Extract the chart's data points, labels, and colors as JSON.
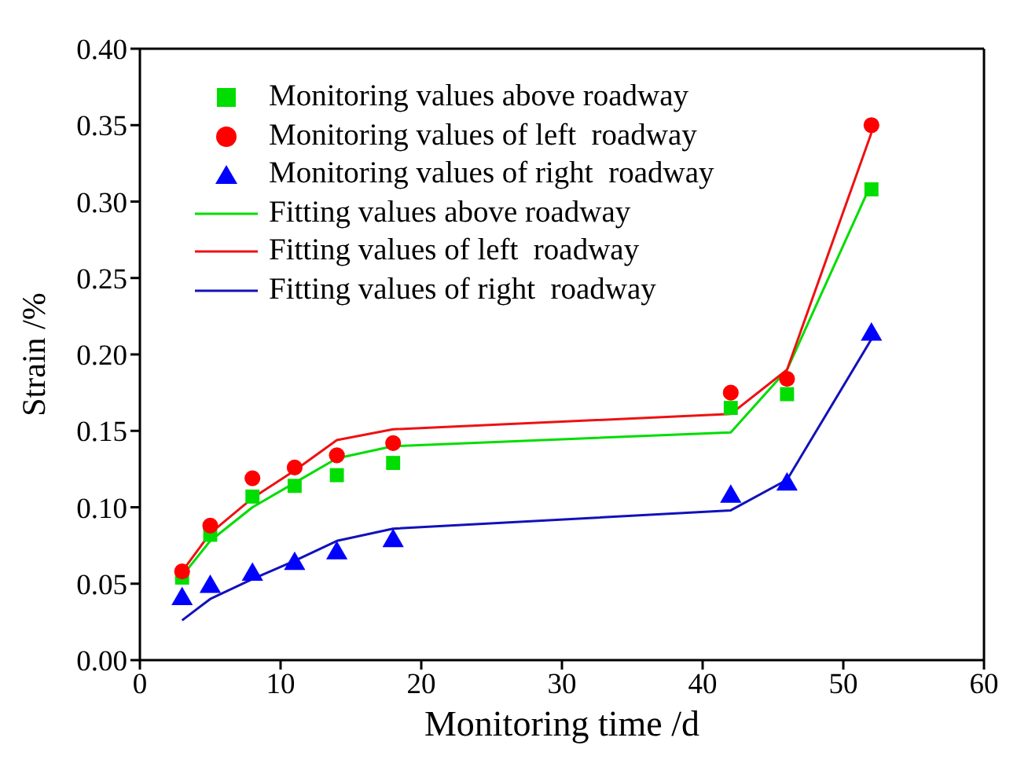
{
  "chart_data": {
    "type": "scatter",
    "xlabel": "Monitoring time /d",
    "ylabel": "Strain /%",
    "xlim": [
      0,
      60
    ],
    "xticks": [
      0,
      10,
      20,
      30,
      40,
      50,
      60
    ],
    "ylim": [
      0,
      0.4
    ],
    "yticks": [
      {
        "value": 0,
        "label": "0.00"
      },
      0.05,
      {
        "value": 0.1,
        "label": "0.10"
      },
      0.15,
      {
        "value": 0.2,
        "label": "0.20"
      },
      0.25,
      {
        "value": 0.3,
        "label": "0.30"
      },
      0.35,
      {
        "value": 0.4,
        "label": "0.40"
      }
    ],
    "legend": "top left",
    "x": [
      3,
      5,
      8,
      11,
      14,
      18,
      42,
      46,
      52
    ],
    "series": [
      {
        "name": "Monitoring values above roadway",
        "marker": "square",
        "color": "#00dd00",
        "values": [
          0.054,
          0.082,
          0.107,
          0.114,
          0.121,
          0.129,
          0.165,
          0.174,
          0.308
        ]
      },
      {
        "name": "Monitoring values of left  roadway",
        "marker": "circle",
        "color": "#ff0000",
        "values": [
          0.058,
          0.088,
          0.119,
          0.126,
          0.134,
          0.142,
          0.175,
          0.184,
          0.35
        ]
      },
      {
        "name": "Monitoring values of right  roadway",
        "marker": "triangle",
        "color": "#0000ff",
        "values": [
          0.04,
          0.048,
          0.056,
          0.063,
          0.07,
          0.078,
          0.107,
          0.115,
          0.213
        ]
      },
      {
        "name": "Fitting values above roadway",
        "type": "line",
        "marker": "none",
        "color": "#00dd00",
        "values": [
          0.055,
          0.078,
          0.1,
          0.116,
          0.132,
          0.14,
          0.149,
          0.19,
          0.312
        ]
      },
      {
        "name": "Fitting values of left  roadway",
        "type": "line",
        "marker": "none",
        "color": "#ee1111",
        "values": [
          0.058,
          0.083,
          0.106,
          0.124,
          0.144,
          0.151,
          0.161,
          0.19,
          0.345
        ]
      },
      {
        "name": "Fitting values of right  roadway",
        "type": "line",
        "marker": "none",
        "color": "#1111bb",
        "values": [
          0.026,
          0.04,
          0.053,
          0.065,
          0.078,
          0.086,
          0.098,
          0.118,
          0.21
        ]
      }
    ]
  }
}
